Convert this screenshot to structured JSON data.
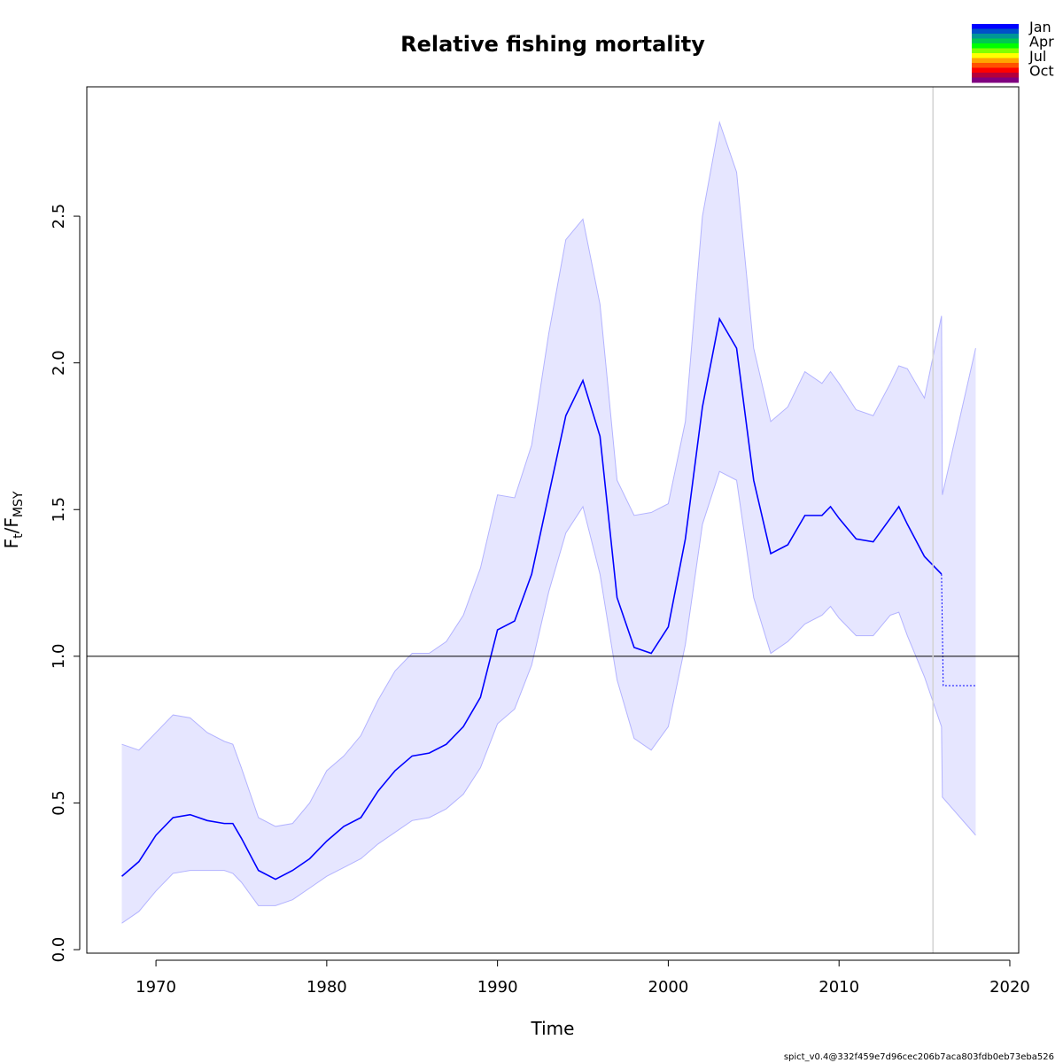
{
  "chart_data": {
    "type": "line",
    "title": "Relative fishing mortality",
    "xlabel": "Time",
    "ylabel_parts": [
      {
        "text": "F"
      },
      {
        "text": "t",
        "sub": true
      },
      {
        "text": "/F"
      },
      {
        "text": "MSY",
        "sub": true
      }
    ],
    "footer": "spict_v0.4@332f459e7d96cec206b7aca803fdb0eb73eba526",
    "x": [
      1968,
      1969,
      1970,
      1971,
      1972,
      1973,
      1974,
      1974.5,
      1975,
      1976,
      1977,
      1978,
      1979,
      1980,
      1981,
      1982,
      1983,
      1984,
      1985,
      1986,
      1987,
      1988,
      1989,
      1990,
      1991,
      1992,
      1993,
      1994,
      1995,
      1996,
      1997,
      1998,
      1999,
      2000,
      2001,
      2002,
      2003,
      2004,
      2005,
      2006,
      2007,
      2008,
      2009,
      2009.5,
      2010,
      2011,
      2012,
      2013,
      2013.5,
      2014,
      2015,
      2016,
      2016.05,
      2018
    ],
    "series": [
      {
        "role": "estimate",
        "color": "#0000ff",
        "values": [
          0.25,
          0.3,
          0.39,
          0.45,
          0.46,
          0.44,
          0.43,
          0.43,
          0.38,
          0.27,
          0.24,
          0.27,
          0.31,
          0.37,
          0.42,
          0.45,
          0.54,
          0.61,
          0.66,
          0.67,
          0.7,
          0.76,
          0.86,
          1.09,
          1.12,
          1.28,
          1.55,
          1.82,
          1.94,
          1.75,
          1.2,
          1.03,
          1.01,
          1.1,
          1.4,
          1.85,
          2.15,
          2.05,
          1.6,
          1.35,
          1.38,
          1.48,
          1.48,
          1.51,
          1.47,
          1.4,
          1.39,
          1.47,
          1.51,
          1.45,
          1.34,
          1.28,
          null,
          null
        ]
      },
      {
        "role": "upper",
        "color": "#b3b3ff",
        "values": [
          0.7,
          0.68,
          0.74,
          0.8,
          0.79,
          0.74,
          0.71,
          0.7,
          0.62,
          0.45,
          0.42,
          0.43,
          0.5,
          0.61,
          0.66,
          0.73,
          0.85,
          0.95,
          1.01,
          1.01,
          1.05,
          1.14,
          1.3,
          1.55,
          1.54,
          1.72,
          2.1,
          2.42,
          2.49,
          2.2,
          1.6,
          1.48,
          1.49,
          1.52,
          1.8,
          2.5,
          2.82,
          2.65,
          2.05,
          1.8,
          1.85,
          1.97,
          1.93,
          1.97,
          1.93,
          1.84,
          1.82,
          1.93,
          1.99,
          1.98,
          1.88,
          2.16,
          1.55,
          2.05
        ]
      },
      {
        "role": "lower",
        "color": "#b3b3ff",
        "values": [
          0.09,
          0.13,
          0.2,
          0.26,
          0.27,
          0.27,
          0.27,
          0.26,
          0.23,
          0.15,
          0.15,
          0.17,
          0.21,
          0.25,
          0.28,
          0.31,
          0.36,
          0.4,
          0.44,
          0.45,
          0.48,
          0.53,
          0.62,
          0.77,
          0.82,
          0.97,
          1.22,
          1.42,
          1.51,
          1.28,
          0.92,
          0.72,
          0.68,
          0.76,
          1.04,
          1.45,
          1.63,
          1.6,
          1.2,
          1.01,
          1.05,
          1.11,
          1.14,
          1.17,
          1.13,
          1.07,
          1.07,
          1.14,
          1.15,
          1.07,
          0.93,
          0.76,
          0.52,
          0.39
        ]
      }
    ],
    "band_color": "#e6e6ff",
    "prediction": {
      "color": "#0000ff",
      "dashed": true,
      "x": [
        2016,
        2016.1,
        2018
      ],
      "values": [
        1.28,
        0.9,
        0.9
      ]
    },
    "hline": 1,
    "vline": 2015.5,
    "xlim": [
      1965.95,
      2020.52
    ],
    "ylim": [
      -0.012,
      2.941
    ],
    "xticks": [
      1970,
      1980,
      1990,
      2000,
      2010,
      2020
    ],
    "yticks": [
      {
        "value": 0,
        "label": "0.0"
      },
      0.5,
      {
        "value": 1,
        "label": "1.0"
      },
      1.5,
      {
        "value": 2,
        "label": "2.0"
      },
      2.5
    ],
    "legend": {
      "colors": [
        "#0000ff",
        "#0050c8",
        "#009696",
        "#00c850",
        "#00ff00",
        "#80ff00",
        "#ffff00",
        "#ffa500",
        "#ff5000",
        "#ff0000",
        "#b4003c",
        "#800080"
      ],
      "labels": [
        "Jan",
        "Apr",
        "Jul",
        "Oct"
      ]
    }
  }
}
